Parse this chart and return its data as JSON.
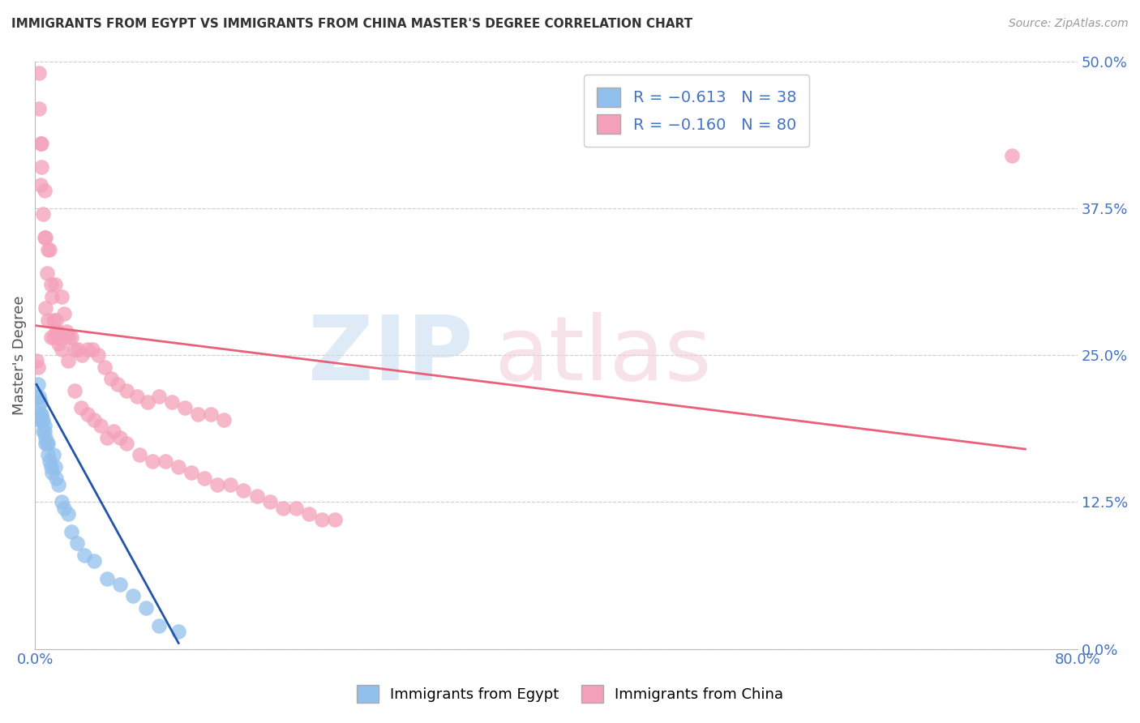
{
  "title": "IMMIGRANTS FROM EGYPT VS IMMIGRANTS FROM CHINA MASTER'S DEGREE CORRELATION CHART",
  "source": "Source: ZipAtlas.com",
  "ylabel": "Master's Degree",
  "ytick_labels": [
    "0.0%",
    "12.5%",
    "25.0%",
    "37.5%",
    "50.0%"
  ],
  "ytick_values": [
    0.0,
    0.125,
    0.25,
    0.375,
    0.5
  ],
  "xlim": [
    0.0,
    0.8
  ],
  "ylim": [
    0.0,
    0.5
  ],
  "color_egypt": "#92C0EC",
  "color_china": "#F4A0B8",
  "line_color_egypt": "#2255AA",
  "line_color_china": "#E8607A",
  "egypt_x": [
    0.001,
    0.002,
    0.002,
    0.003,
    0.003,
    0.004,
    0.004,
    0.005,
    0.005,
    0.006,
    0.006,
    0.007,
    0.007,
    0.008,
    0.008,
    0.009,
    0.01,
    0.01,
    0.011,
    0.012,
    0.013,
    0.014,
    0.015,
    0.016,
    0.018,
    0.02,
    0.022,
    0.025,
    0.028,
    0.032,
    0.038,
    0.045,
    0.055,
    0.065,
    0.075,
    0.085,
    0.095,
    0.11
  ],
  "egypt_y": [
    0.215,
    0.225,
    0.205,
    0.215,
    0.195,
    0.21,
    0.2,
    0.2,
    0.195,
    0.195,
    0.185,
    0.19,
    0.185,
    0.18,
    0.175,
    0.175,
    0.175,
    0.165,
    0.16,
    0.155,
    0.15,
    0.165,
    0.155,
    0.145,
    0.14,
    0.125,
    0.12,
    0.115,
    0.1,
    0.09,
    0.08,
    0.075,
    0.06,
    0.055,
    0.045,
    0.035,
    0.02,
    0.015
  ],
  "china_x": [
    0.001,
    0.002,
    0.003,
    0.003,
    0.004,
    0.004,
    0.005,
    0.005,
    0.006,
    0.007,
    0.007,
    0.008,
    0.009,
    0.01,
    0.011,
    0.012,
    0.013,
    0.014,
    0.015,
    0.016,
    0.017,
    0.018,
    0.02,
    0.022,
    0.024,
    0.026,
    0.028,
    0.03,
    0.033,
    0.036,
    0.04,
    0.044,
    0.048,
    0.053,
    0.058,
    0.063,
    0.07,
    0.078,
    0.086,
    0.095,
    0.105,
    0.115,
    0.125,
    0.135,
    0.145,
    0.008,
    0.01,
    0.012,
    0.014,
    0.016,
    0.018,
    0.02,
    0.025,
    0.03,
    0.035,
    0.04,
    0.045,
    0.05,
    0.055,
    0.06,
    0.065,
    0.07,
    0.08,
    0.09,
    0.1,
    0.11,
    0.12,
    0.13,
    0.14,
    0.15,
    0.16,
    0.17,
    0.18,
    0.19,
    0.2,
    0.21,
    0.22,
    0.23,
    0.75
  ],
  "china_y": [
    0.245,
    0.24,
    0.49,
    0.46,
    0.43,
    0.395,
    0.43,
    0.41,
    0.37,
    0.39,
    0.35,
    0.35,
    0.32,
    0.34,
    0.34,
    0.31,
    0.3,
    0.28,
    0.31,
    0.28,
    0.27,
    0.26,
    0.3,
    0.285,
    0.27,
    0.265,
    0.265,
    0.255,
    0.255,
    0.25,
    0.255,
    0.255,
    0.25,
    0.24,
    0.23,
    0.225,
    0.22,
    0.215,
    0.21,
    0.215,
    0.21,
    0.205,
    0.2,
    0.2,
    0.195,
    0.29,
    0.28,
    0.265,
    0.265,
    0.27,
    0.265,
    0.255,
    0.245,
    0.22,
    0.205,
    0.2,
    0.195,
    0.19,
    0.18,
    0.185,
    0.18,
    0.175,
    0.165,
    0.16,
    0.16,
    0.155,
    0.15,
    0.145,
    0.14,
    0.14,
    0.135,
    0.13,
    0.125,
    0.12,
    0.12,
    0.115,
    0.11,
    0.11,
    0.42
  ],
  "egypt_line_x": [
    0.001,
    0.11
  ],
  "egypt_line_y": [
    0.225,
    0.005
  ],
  "china_line_x": [
    0.001,
    0.76
  ],
  "china_line_y": [
    0.275,
    0.17
  ]
}
